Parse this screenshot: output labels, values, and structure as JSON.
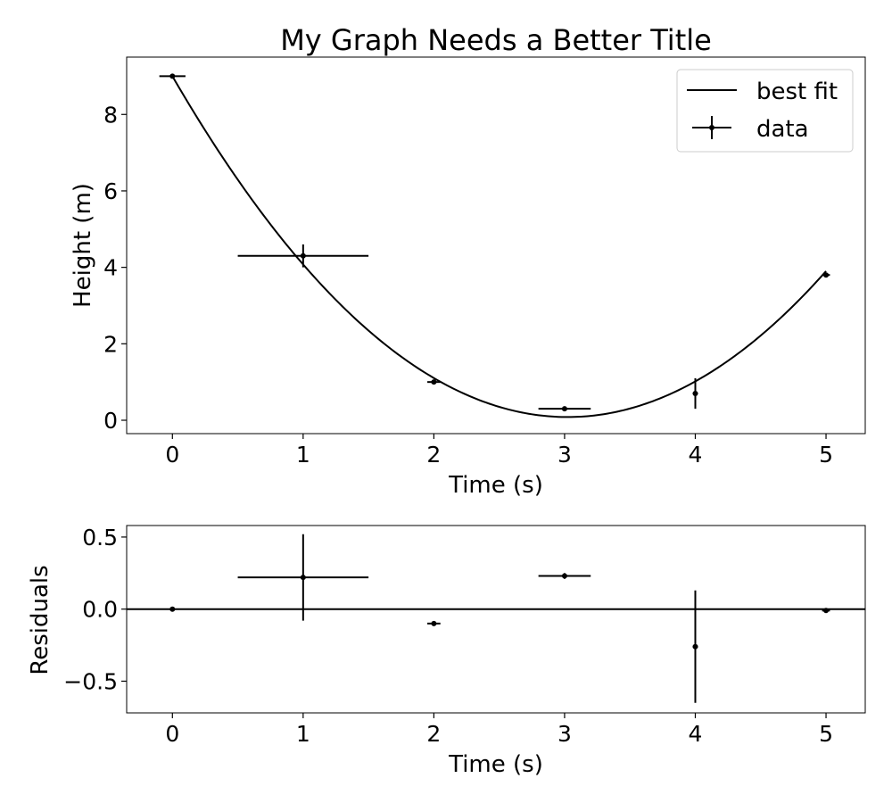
{
  "chart_data": [
    {
      "type": "scatter",
      "title": "My Graph Needs a Better Title",
      "xlabel": "Time (s)",
      "ylabel": "Height (m)",
      "xlim": [
        -0.35,
        5.3
      ],
      "ylim": [
        -0.35,
        9.5
      ],
      "xticks": [
        0,
        1,
        2,
        3,
        4,
        5
      ],
      "yticks": [
        0,
        2,
        4,
        6,
        8
      ],
      "ytick_labels": [
        "0",
        "2",
        "4",
        "6",
        "8"
      ],
      "grid": false,
      "legend": {
        "placement": "top-right",
        "entries": [
          {
            "label": "best fit",
            "kind": "line"
          },
          {
            "label": "data",
            "kind": "errorbar"
          }
        ]
      },
      "series": [
        {
          "name": "data",
          "style": "errorbar",
          "x": [
            0,
            1,
            2,
            3,
            4,
            5
          ],
          "y": [
            9.0,
            4.3,
            1.0,
            0.3,
            0.7,
            3.8
          ],
          "xerr": [
            0.1,
            0.5,
            0.05,
            0.2,
            0.02,
            0.03
          ],
          "yerr": [
            0.02,
            0.3,
            0.02,
            0.03,
            0.4,
            0.03
          ]
        },
        {
          "name": "best fit",
          "style": "line",
          "model": "quadratic",
          "coefficients": [
            9.0,
            -5.9,
            0.976
          ]
        }
      ],
      "color": "#000000"
    },
    {
      "type": "scatter",
      "title": "",
      "xlabel": "Time (s)",
      "ylabel": "Residuals",
      "xlim": [
        -0.35,
        5.3
      ],
      "ylim": [
        -0.72,
        0.58
      ],
      "xticks": [
        0,
        1,
        2,
        3,
        4,
        5
      ],
      "yticks": [
        -0.5,
        0.0,
        0.5
      ],
      "ytick_labels": [
        "−0.5",
        "0.0",
        "0.5"
      ],
      "zero_line": true,
      "grid": false,
      "series": [
        {
          "style": "errorbar",
          "x": [
            0,
            1,
            2,
            3,
            4,
            5
          ],
          "y": [
            0.0,
            0.22,
            -0.1,
            0.23,
            -0.26,
            -0.01
          ],
          "xerr": [
            0.02,
            0.5,
            0.05,
            0.2,
            0.02,
            0.03
          ],
          "yerr": [
            0.01,
            0.3,
            0.01,
            0.02,
            0.39,
            0.01
          ]
        }
      ],
      "color": "#000000"
    }
  ]
}
